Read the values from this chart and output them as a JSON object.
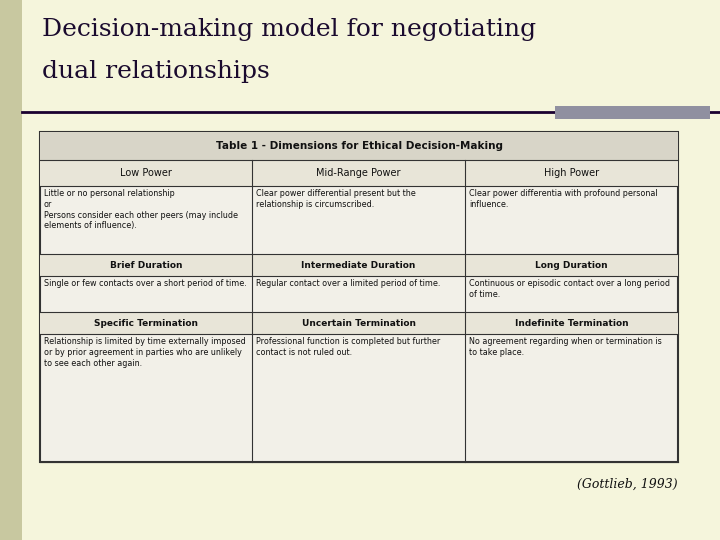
{
  "title_line1": "Decision-making model for negotiating",
  "title_line2": "dual relationships",
  "title_color": "#1a0a2e",
  "bg_color": "#f5f5dc",
  "left_bar_color": "#c8c8a0",
  "slide_line_color": "#1a0030",
  "gray_rect_color": "#9090a0",
  "citation": "(Gottlieb, 1993)",
  "table_title": "Table 1 - Dimensions for Ethical Decision-Making",
  "table_title_bg": "#d8d5c8",
  "table_bg": "#f2f0e8",
  "table_border_color": "#333333",
  "col_headers": [
    "Low Power",
    "Mid-Range Power",
    "High Power"
  ],
  "col_header_bg": "#e8e5d8",
  "row_headers_1": [
    "Brief Duration",
    "Intermediate Duration",
    "Long Duration"
  ],
  "row_headers_2": [
    "Specific Termination",
    "Uncertain Termination",
    "Indefinite Termination"
  ],
  "row_header_bg": "#e8e5d8",
  "cells_row1": [
    "Little or no personal relationship\nor\nPersons consider each other peers (may include\nelements of influence).",
    "Clear power differential present but the\nrelationship is circumscribed.",
    "Clear power differentia with profound personal\ninfluence."
  ],
  "cells_row2": [
    "Single or few contacts over a short period of time.",
    "Regular contact over a limited period of time.",
    "Continuous or episodic contact over a long period\nof time."
  ],
  "cells_row3": [
    "Relationship is limited by time externally imposed\nor by prior agreement in parties who are unlikely\nto see each other again.",
    "Professional function is completed but further\ncontact is not ruled out.",
    "No agreement regarding when or termination is\nto take place."
  ]
}
